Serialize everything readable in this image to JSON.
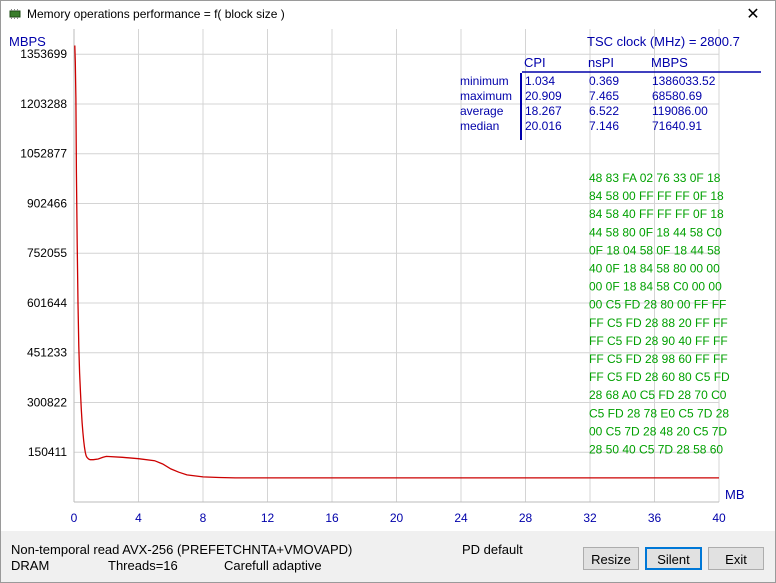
{
  "window": {
    "title": "Memory operations performance = f( block size )",
    "close_glyph": "✕"
  },
  "chart_data": {
    "type": "line",
    "ylabel": "MBPS",
    "xlabel": "MB",
    "xlim": [
      0,
      40
    ],
    "ylim": [
      0,
      1430000
    ],
    "y_ticks": [
      150411,
      300822,
      451233,
      601644,
      752055,
      902466,
      1052877,
      1203288,
      1353699
    ],
    "x_ticks": [
      0,
      4,
      8,
      12,
      16,
      20,
      24,
      28,
      32,
      36,
      40
    ],
    "grid": true,
    "line_color": "#cc0000",
    "series": [
      {
        "x": [
          0.05,
          0.08,
          0.12,
          0.15,
          0.2,
          0.25,
          0.3,
          0.35,
          0.4,
          0.45,
          0.5,
          0.55,
          0.6,
          0.65,
          0.7,
          0.75,
          0.8,
          0.9,
          1.0,
          1.2,
          1.5,
          1.8,
          2.0,
          3.0,
          4.0,
          5.0,
          5.5,
          6.0,
          6.5,
          7.0,
          8.0,
          9.0,
          10,
          12,
          16,
          20,
          24,
          28,
          32,
          36,
          40
        ],
        "y": [
          1380000,
          1330000,
          1220000,
          1000000,
          780000,
          600000,
          470000,
          390000,
          330000,
          280000,
          240000,
          210000,
          185000,
          165000,
          150000,
          140000,
          135000,
          130000,
          128000,
          128000,
          130000,
          135000,
          138000,
          135000,
          131000,
          125000,
          115000,
          100000,
          90000,
          82000,
          76000,
          74000,
          73000,
          73000,
          73000,
          73000,
          73000,
          73000,
          73000,
          73000,
          73000
        ]
      }
    ]
  },
  "tsc": "TSC clock (MHz) = 2800.7",
  "stats": {
    "headers": [
      "CPI",
      "nsPI",
      "MBPS"
    ],
    "rows": [
      {
        "label": "minimum",
        "cpi": "1.034",
        "nspi": "0.369",
        "mbps": "1386033.52"
      },
      {
        "label": "maximum",
        "cpi": "20.909",
        "nspi": "7.465",
        "mbps": "68580.69"
      },
      {
        "label": "average",
        "cpi": "18.267",
        "nspi": "6.522",
        "mbps": "119086.00"
      },
      {
        "label": "median",
        "cpi": "20.016",
        "nspi": "7.146",
        "mbps": "71640.91"
      }
    ]
  },
  "hex_dump": [
    "48 83 FA 02 76 33 0F 18",
    "84 58 00 FF FF FF 0F 18",
    "84 58 40 FF FF FF 0F 18",
    "44 58 80 0F 18 44 58 C0",
    "0F 18 04 58 0F 18 44 58",
    "40 0F 18 84 58 80 00 00",
    "00 0F 18 84 58 C0 00 00",
    "00 C5 FD 28 80 00 FF FF",
    "FF C5 FD 28 88 20 FF FF",
    "FF C5 FD 28 90 40 FF FF",
    "FF C5 FD 28 98 60 FF FF",
    "FF C5 FD 28 60 80 C5 FD",
    "28 68 A0 C5 FD 28 70 C0",
    "C5 FD 28 78 E0 C5 7D 28",
    "00 C5 7D 28 48 20 C5 7D",
    "28 50 40 C5 7D 28 58 60"
  ],
  "status": {
    "method": "Non-temporal read AVX-256 (PREFETCHNTA+VMOVAPD)",
    "pd": "PD default",
    "memory": "DRAM",
    "threads": "Threads=16",
    "adaptive": "Carefull adaptive"
  },
  "buttons": {
    "resize": "Resize",
    "silent": "Silent",
    "exit": "Exit"
  }
}
